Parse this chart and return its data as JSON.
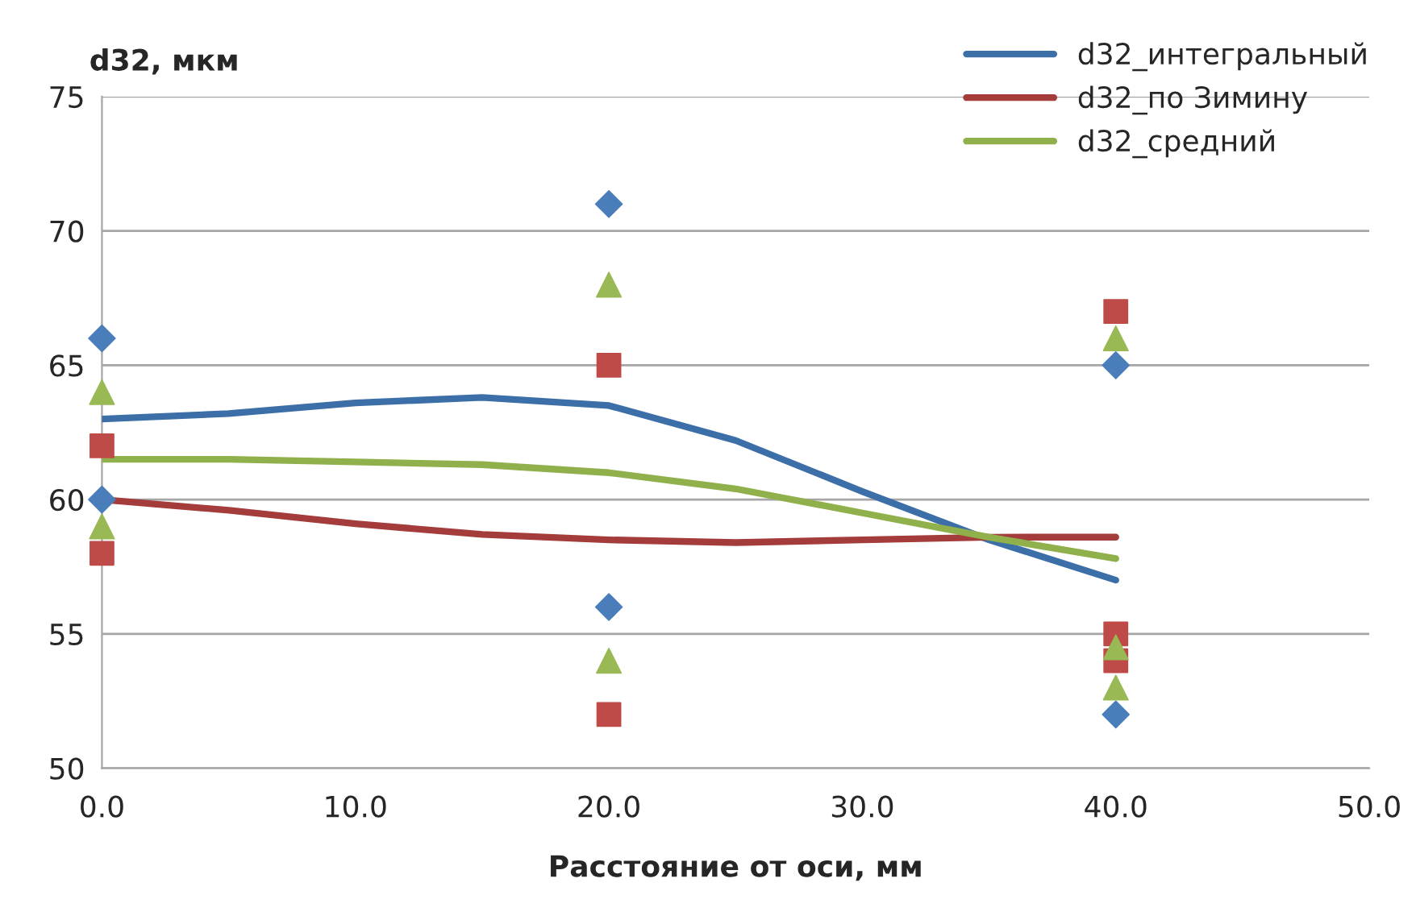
{
  "chart_data": {
    "type": "scatter",
    "ylabel": "d32, мкм",
    "xlabel": "Расстояние от оси, мм",
    "xlim": [
      0,
      50
    ],
    "xticks": [
      {
        "value": 0,
        "label": "0.0"
      },
      {
        "value": 10,
        "label": "10.0"
      },
      {
        "value": 20,
        "label": "20.0"
      },
      {
        "value": 30,
        "label": "30.0"
      },
      {
        "value": 40,
        "label": "40.0"
      },
      {
        "value": 50,
        "label": "50.0"
      }
    ],
    "ylim": [
      50,
      75
    ],
    "yticks": [
      50,
      55,
      60,
      65,
      70,
      75
    ],
    "grid": "y",
    "legend": "top right",
    "series": [
      {
        "marker": "diamond",
        "color": "#4a7ebb",
        "x": [
          0,
          0,
          20,
          20,
          40,
          40
        ],
        "values": [
          66,
          60,
          71,
          56,
          65,
          52
        ]
      },
      {
        "marker": "square",
        "color": "#be4b48",
        "x": [
          0,
          0,
          20,
          20,
          40,
          40,
          40
        ],
        "values": [
          62,
          58,
          65,
          52,
          67,
          55,
          54
        ]
      },
      {
        "marker": "triangle",
        "color": "#98b954",
        "x": [
          0,
          0,
          20,
          20,
          40,
          40,
          40
        ],
        "values": [
          64,
          59,
          68,
          54,
          66,
          54.5,
          53
        ]
      },
      {
        "type": "line",
        "name": "d32_интегральный",
        "color": "#3c6ea8",
        "x": [
          0,
          5,
          10,
          15,
          20,
          25,
          30,
          35,
          40
        ],
        "values": [
          63,
          63.2,
          63.6,
          63.8,
          63.5,
          62.2,
          60.3,
          58.5,
          57
        ]
      },
      {
        "type": "line",
        "name": "d32_по Зимину",
        "color": "#a33c3a",
        "x": [
          0,
          5,
          10,
          15,
          20,
          25,
          30,
          35,
          40
        ],
        "values": [
          60,
          59.6,
          59.1,
          58.7,
          58.5,
          58.4,
          58.5,
          58.6,
          58.6
        ]
      },
      {
        "type": "line",
        "name": "d32_средний",
        "color": "#8fb04a",
        "x": [
          0,
          5,
          10,
          15,
          20,
          25,
          30,
          35,
          40
        ],
        "values": [
          61.5,
          61.5,
          61.4,
          61.3,
          61.0,
          60.4,
          59.5,
          58.6,
          57.8
        ]
      }
    ]
  }
}
